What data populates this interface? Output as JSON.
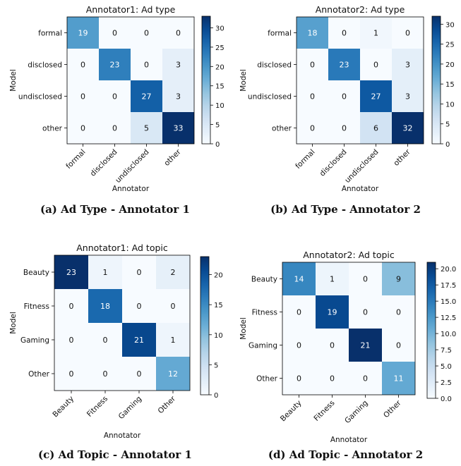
{
  "chart_data": [
    {
      "type": "heatmap",
      "title": "Annotator1: Ad type",
      "xlabel": "Annotator",
      "ylabel": "Model",
      "categories": [
        "formal",
        "disclosed",
        "undisclosed",
        "other"
      ],
      "values": [
        [
          19,
          0,
          0,
          0
        ],
        [
          0,
          23,
          0,
          3
        ],
        [
          0,
          0,
          27,
          3
        ],
        [
          0,
          0,
          5,
          33
        ]
      ],
      "vmax": 33,
      "colorbar_ticks": [
        "0",
        "5",
        "10",
        "15",
        "20",
        "25",
        "30"
      ],
      "colorbar_values": [
        0,
        5,
        10,
        15,
        20,
        25,
        30
      ],
      "caption": "(a) Ad Type - Annotator 1"
    },
    {
      "type": "heatmap",
      "title": "Annotator2: Ad type",
      "xlabel": "Annotator",
      "ylabel": "Model",
      "categories": [
        "formal",
        "disclosed",
        "undisclosed",
        "other"
      ],
      "values": [
        [
          18,
          0,
          1,
          0
        ],
        [
          0,
          23,
          0,
          3
        ],
        [
          0,
          0,
          27,
          3
        ],
        [
          0,
          0,
          6,
          32
        ]
      ],
      "vmax": 32,
      "colorbar_ticks": [
        "0",
        "5",
        "10",
        "15",
        "20",
        "25",
        "30"
      ],
      "colorbar_values": [
        0,
        5,
        10,
        15,
        20,
        25,
        30
      ],
      "caption": "(b) Ad Type - Annotator 2"
    },
    {
      "type": "heatmap",
      "title": "Annotator1: Ad topic",
      "xlabel": "Annotator",
      "ylabel": "Model",
      "categories": [
        "Beauty",
        "Fitness",
        "Gaming",
        "Other"
      ],
      "values": [
        [
          23,
          1,
          0,
          2
        ],
        [
          0,
          18,
          0,
          0
        ],
        [
          0,
          0,
          21,
          1
        ],
        [
          0,
          0,
          0,
          12
        ]
      ],
      "vmax": 23,
      "colorbar_ticks": [
        "0",
        "5",
        "10",
        "15",
        "20"
      ],
      "colorbar_values": [
        0,
        5,
        10,
        15,
        20
      ],
      "caption": "(c) Ad Topic - Annotator 1"
    },
    {
      "type": "heatmap",
      "title": "Annotator2: Ad topic",
      "xlabel": "Annotator",
      "ylabel": "Model",
      "categories": [
        "Beauty",
        "Fitness",
        "Gaming",
        "Other"
      ],
      "values": [
        [
          14,
          1,
          0,
          9
        ],
        [
          0,
          19,
          0,
          0
        ],
        [
          0,
          0,
          21,
          0
        ],
        [
          0,
          0,
          0,
          11
        ]
      ],
      "vmax": 21,
      "colorbar_ticks": [
        "0.0",
        "2.5",
        "5.0",
        "7.5",
        "10.0",
        "12.5",
        "15.0",
        "17.5",
        "20.0"
      ],
      "colorbar_values": [
        0,
        2.5,
        5,
        7.5,
        10,
        12.5,
        15,
        17.5,
        20
      ],
      "caption": "(d) Ad Topic - Annotator 2"
    }
  ]
}
